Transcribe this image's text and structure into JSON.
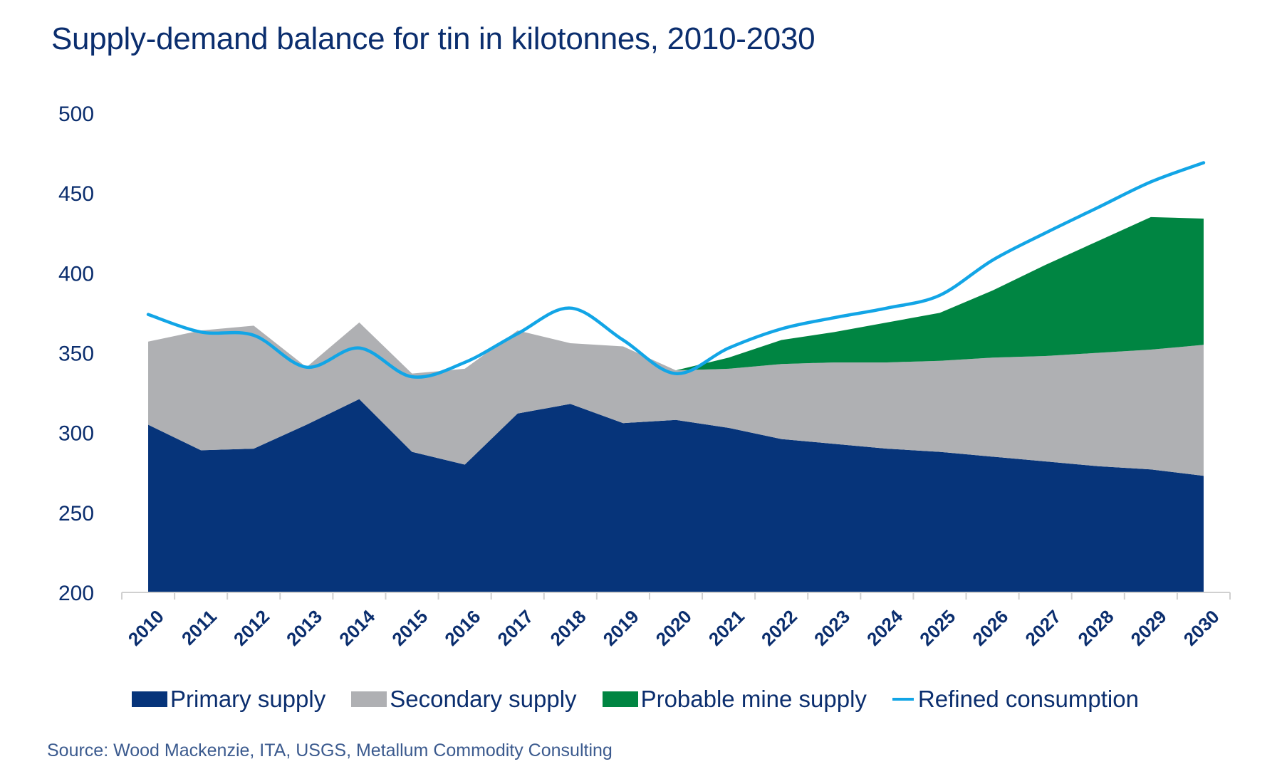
{
  "chart_data": {
    "type": "area",
    "stacked": true,
    "title": "Supply-demand balance for tin in kilotonnes, 2010-2030",
    "xlabel": "",
    "ylabel": "",
    "categories": [
      "2010",
      "2011",
      "2012",
      "2013",
      "2014",
      "2015",
      "2016",
      "2017",
      "2018",
      "2019",
      "2020",
      "2021",
      "2022",
      "2023",
      "2024",
      "2025",
      "2026",
      "2027",
      "2028",
      "2029",
      "2030"
    ],
    "ylim": [
      200,
      500
    ],
    "yticks": [
      200,
      250,
      300,
      350,
      400,
      450,
      500
    ],
    "grid": false,
    "legend_position": "bottom",
    "series": [
      {
        "name": "Primary supply",
        "kind": "area",
        "color": "#06347a",
        "values": [
          305,
          289,
          290,
          305,
          321,
          288,
          280,
          312,
          318,
          306,
          308,
          303,
          296,
          293,
          290,
          288,
          285,
          282,
          279,
          277,
          273
        ]
      },
      {
        "name": "Secondary supply",
        "kind": "area",
        "color": "#afb0b3",
        "values": [
          52,
          75,
          77,
          36,
          48,
          49,
          60,
          52,
          38,
          48,
          31,
          37,
          47,
          51,
          54,
          57,
          62,
          66,
          71,
          75,
          82
        ]
      },
      {
        "name": "Probable mine supply",
        "kind": "area",
        "color": "#008542",
        "values": [
          null,
          null,
          null,
          null,
          null,
          null,
          null,
          null,
          null,
          null,
          0,
          7,
          15,
          19,
          25,
          30,
          42,
          57,
          70,
          83,
          79
        ]
      },
      {
        "name": "Refined consumption",
        "kind": "line",
        "color": "#12a5e6",
        "values": [
          374,
          363,
          361,
          341,
          353,
          335,
          344,
          362,
          378,
          358,
          337,
          353,
          365,
          372,
          378,
          386,
          408,
          425,
          441,
          457,
          469
        ]
      }
    ]
  },
  "legend": {
    "items": [
      {
        "label": "Primary supply",
        "color": "#06347a",
        "kind": "swatch"
      },
      {
        "label": "Secondary supply",
        "color": "#afb0b3",
        "kind": "swatch"
      },
      {
        "label": "Probable mine supply",
        "color": "#008542",
        "kind": "swatch"
      },
      {
        "label": "Refined consumption",
        "color": "#12a5e6",
        "kind": "line"
      }
    ]
  },
  "source": "Source: Wood Mackenzie, ITA, USGS, Metallum Commodity Consulting"
}
